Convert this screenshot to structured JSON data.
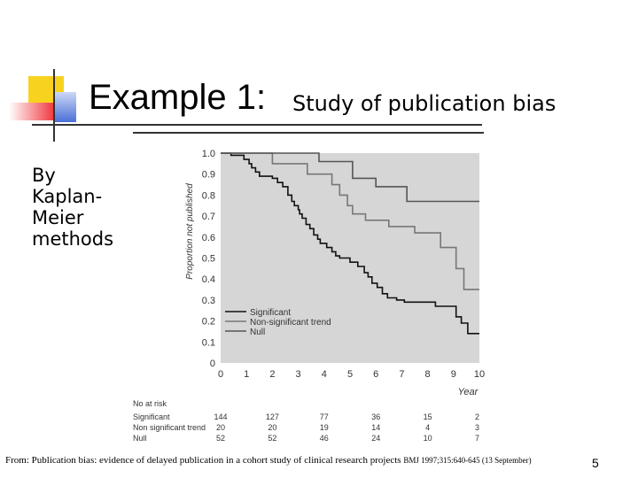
{
  "slide": {
    "title": "Example 1:",
    "subtitle": "Study of publication bias",
    "side_note": [
      "By",
      "Kaplan-",
      "Meier",
      "methods"
    ],
    "footer": "From: Publication bias: evidence of delayed publication in a cohort study of clinical research projects",
    "footer_citation": "BMJ 1997;315:640-645 (13 September)",
    "page_number": "5",
    "colors": {
      "deco_yellow": "#f7d21e",
      "deco_red": "#f0343c",
      "deco_blue": "#4a6fd8",
      "plot_bg": "#d6d6d6"
    }
  },
  "chart_data": {
    "type": "line",
    "ylabel": "Proportion not published",
    "xlabel": "Year",
    "xlim": [
      0,
      10
    ],
    "ylim": [
      0,
      1.0
    ],
    "x_ticks": [
      0,
      1,
      2,
      3,
      4,
      5,
      6,
      7,
      8,
      9,
      10
    ],
    "y_ticks": [
      0,
      0.1,
      0.2,
      0.3,
      0.4,
      0.5,
      0.6,
      0.7,
      0.8,
      0.9,
      1.0
    ],
    "legend_position": "lower-left",
    "series": [
      {
        "name": "Significant",
        "color": "#111111",
        "steps": [
          [
            0,
            1.0
          ],
          [
            0.4,
            0.99
          ],
          [
            0.9,
            0.97
          ],
          [
            1.1,
            0.95
          ],
          [
            1.2,
            0.93
          ],
          [
            1.35,
            0.91
          ],
          [
            1.5,
            0.89
          ],
          [
            2.0,
            0.88
          ],
          [
            2.2,
            0.86
          ],
          [
            2.4,
            0.84
          ],
          [
            2.6,
            0.8
          ],
          [
            2.75,
            0.77
          ],
          [
            2.85,
            0.75
          ],
          [
            3.0,
            0.73
          ],
          [
            3.05,
            0.71
          ],
          [
            3.15,
            0.69
          ],
          [
            3.3,
            0.66
          ],
          [
            3.45,
            0.64
          ],
          [
            3.6,
            0.61
          ],
          [
            3.75,
            0.59
          ],
          [
            3.85,
            0.57
          ],
          [
            4.1,
            0.55
          ],
          [
            4.3,
            0.53
          ],
          [
            4.45,
            0.51
          ],
          [
            4.6,
            0.5
          ],
          [
            5.0,
            0.48
          ],
          [
            5.3,
            0.46
          ],
          [
            5.55,
            0.43
          ],
          [
            5.7,
            0.41
          ],
          [
            5.85,
            0.38
          ],
          [
            6.05,
            0.36
          ],
          [
            6.25,
            0.33
          ],
          [
            6.45,
            0.31
          ],
          [
            6.8,
            0.3
          ],
          [
            7.1,
            0.29
          ],
          [
            8.3,
            0.27
          ],
          [
            9.1,
            0.22
          ],
          [
            9.3,
            0.19
          ],
          [
            9.55,
            0.14
          ],
          [
            10.0,
            0.14
          ]
        ]
      },
      {
        "name": "Non-significant trend",
        "color": "#777777",
        "steps": [
          [
            0,
            1.0
          ],
          [
            2.0,
            0.95
          ],
          [
            2.2,
            0.95
          ],
          [
            3.3,
            0.95
          ],
          [
            3.35,
            0.9
          ],
          [
            4.1,
            0.9
          ],
          [
            4.3,
            0.85
          ],
          [
            4.6,
            0.8
          ],
          [
            4.9,
            0.75
          ],
          [
            5.1,
            0.71
          ],
          [
            5.6,
            0.68
          ],
          [
            6.5,
            0.65
          ],
          [
            7.5,
            0.62
          ],
          [
            8.5,
            0.55
          ],
          [
            9.1,
            0.45
          ],
          [
            9.4,
            0.35
          ],
          [
            10.0,
            0.35
          ]
        ]
      },
      {
        "name": "Null",
        "color": "#555555",
        "steps": [
          [
            0,
            1.0
          ],
          [
            3.8,
            1.0
          ],
          [
            3.8,
            0.96
          ],
          [
            4.9,
            0.96
          ],
          [
            5.1,
            0.88
          ],
          [
            6.0,
            0.88
          ],
          [
            6.0,
            0.84
          ],
          [
            7.0,
            0.84
          ],
          [
            7.2,
            0.77
          ],
          [
            10.0,
            0.77
          ]
        ]
      }
    ],
    "at_risk": {
      "title": "No at risk",
      "columns_at_years": [
        0,
        2,
        4,
        6,
        8,
        10
      ],
      "rows": [
        {
          "label": "Significant",
          "values": [
            "144",
            "127",
            "77",
            "36",
            "15",
            "2"
          ]
        },
        {
          "label": "Non significant trend",
          "values": [
            "20",
            "20",
            "19",
            "14",
            "4",
            "3"
          ]
        },
        {
          "label": "Null",
          "values": [
            "52",
            "52",
            "46",
            "24",
            "10",
            "7"
          ]
        }
      ]
    }
  }
}
